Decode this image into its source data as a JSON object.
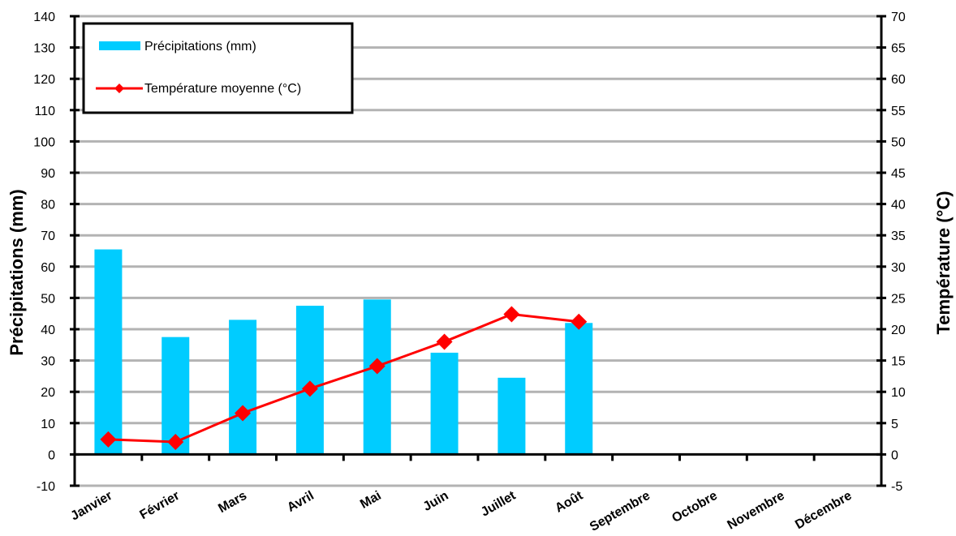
{
  "chart_data": {
    "type": "bar",
    "categories": [
      "Janvier",
      "Février",
      "Mars",
      "Avril",
      "Mai",
      "Juin",
      "Juillet",
      "Août",
      "Septembre",
      "Octobre",
      "Novembre",
      "Décembre"
    ],
    "series": [
      {
        "name": "Précipitations (mm)",
        "type": "bar",
        "axis": "left",
        "color": "#00ccff",
        "values": [
          65.5,
          37.5,
          43,
          47.5,
          49.5,
          32.5,
          24.5,
          42,
          null,
          null,
          null,
          null
        ]
      },
      {
        "name": "Température moyenne (°C)",
        "type": "line",
        "axis": "right",
        "color": "#ff0000",
        "marker": "diamond",
        "values": [
          2.4,
          2.0,
          6.6,
          10.5,
          14.1,
          18.0,
          22.4,
          21.2,
          null,
          null,
          null,
          null
        ]
      }
    ],
    "ylabel": "Précipitations (mm)",
    "y2label": "Température (°C)",
    "ylim": [
      -10,
      140
    ],
    "y2lim": [
      -5,
      70
    ],
    "yticks": [
      -10,
      0,
      10,
      20,
      30,
      40,
      50,
      60,
      70,
      80,
      90,
      100,
      110,
      120,
      130,
      140
    ],
    "y2ticks": [
      -5,
      0,
      5,
      10,
      15,
      20,
      25,
      30,
      35,
      40,
      45,
      50,
      55,
      60,
      65,
      70
    ],
    "grid": true,
    "legend_position": "top-left"
  }
}
